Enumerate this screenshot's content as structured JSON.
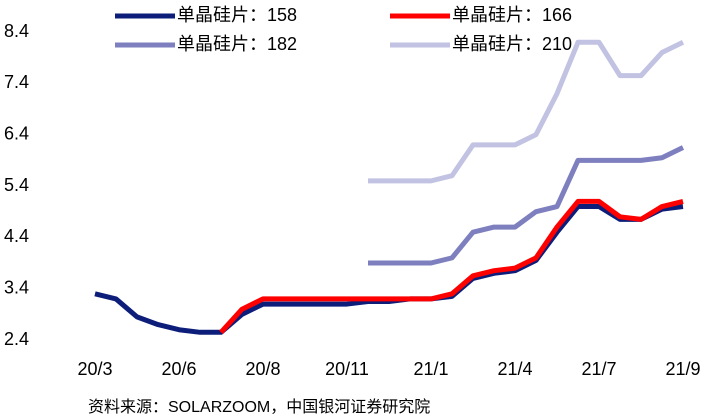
{
  "chart_data": {
    "type": "line",
    "categories": [
      "20/3",
      null,
      null,
      null,
      "20/6",
      null,
      null,
      null,
      "20/8",
      null,
      null,
      null,
      "20/11",
      null,
      null,
      null,
      "21/1",
      null,
      null,
      null,
      "21/4",
      null,
      null,
      null,
      "21/7",
      null,
      null,
      null,
      "21/9"
    ],
    "series": [
      {
        "name": "单晶硅片：158",
        "color": "#0d1e7a",
        "values": [
          3.3,
          3.2,
          2.85,
          2.7,
          2.6,
          2.55,
          2.55,
          2.9,
          3.1,
          3.1,
          3.1,
          3.1,
          3.1,
          3.15,
          3.15,
          3.2,
          3.2,
          3.25,
          3.6,
          3.7,
          3.75,
          3.95,
          4.5,
          5.0,
          5.0,
          4.75,
          4.75,
          4.95,
          5.0
        ]
      },
      {
        "name": "单晶硅片：166",
        "color": "#ff0000",
        "values": [
          null,
          null,
          null,
          null,
          null,
          null,
          2.55,
          3.0,
          3.2,
          3.2,
          3.2,
          3.2,
          3.2,
          3.2,
          3.2,
          3.2,
          3.2,
          3.3,
          3.65,
          3.75,
          3.8,
          4.0,
          4.6,
          5.1,
          5.1,
          4.8,
          4.75,
          5.0,
          5.1
        ]
      },
      {
        "name": "单晶硅片：182",
        "color": "#7e7fbf",
        "values": [
          null,
          null,
          null,
          null,
          null,
          null,
          null,
          null,
          null,
          null,
          null,
          null,
          null,
          3.9,
          3.9,
          3.9,
          3.9,
          4.0,
          4.5,
          4.6,
          4.6,
          4.9,
          5.0,
          5.9,
          5.9,
          5.9,
          5.9,
          5.95,
          6.15
        ]
      },
      {
        "name": "单晶硅片：210",
        "color": "#c2c2e2",
        "values": [
          null,
          null,
          null,
          null,
          null,
          null,
          null,
          null,
          null,
          null,
          null,
          null,
          null,
          5.5,
          5.5,
          5.5,
          5.5,
          5.6,
          6.2,
          6.2,
          6.2,
          6.4,
          7.2,
          8.2,
          8.2,
          7.55,
          7.55,
          8.0,
          8.2
        ]
      }
    ],
    "ylim": [
      2.4,
      8.4
    ],
    "yticks": [
      2.4,
      3.4,
      4.4,
      5.4,
      6.4,
      7.4,
      8.4
    ],
    "source": "资料来源：SOLARZOOM，中国银河证券研究院"
  }
}
